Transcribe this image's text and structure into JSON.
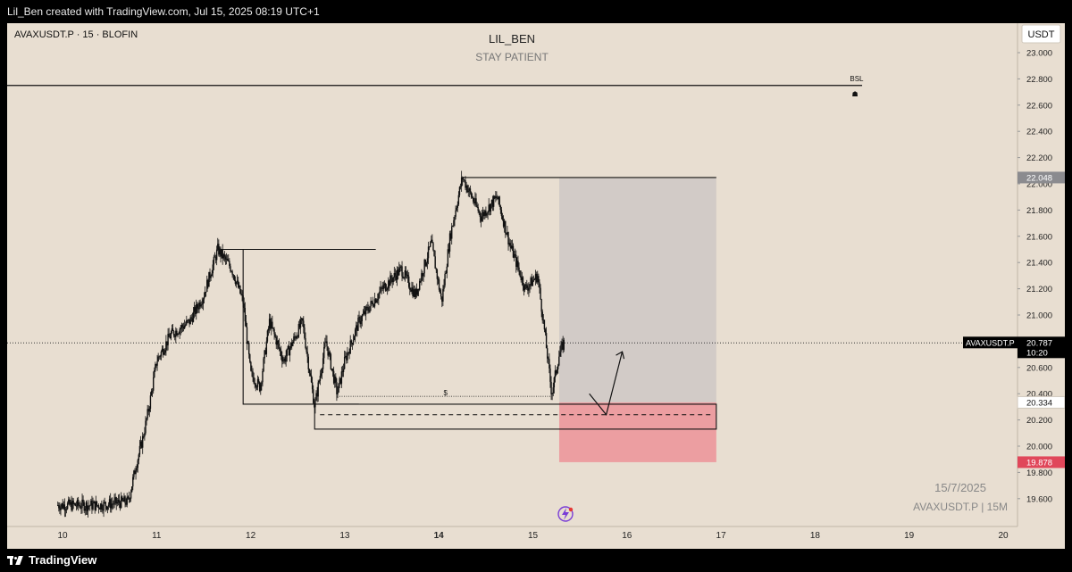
{
  "header": {
    "credit": "Lil_Ben created with TradingView.com, Jul 15, 2025 08:19 UTC+1"
  },
  "chart_header": {
    "symbol_line": "AVAXUSDT.P · 15 · BLOFIN",
    "author": "LIL_BEN",
    "subtitle": "STAY PATIENT",
    "currency_button": "USDT"
  },
  "footer": {
    "brand": "TradingView"
  },
  "annotations": {
    "bsl": "BSL",
    "dollar": "$",
    "date": "15/7/2025",
    "pair_tf": "AVAXUSDT.P | 15M"
  },
  "price_tags": {
    "symbol": "AVAXUSDT.P",
    "last": "20.787",
    "countdown": "10:20",
    "target": "22.048",
    "entry": "20.334",
    "stop": "19.878"
  },
  "colors": {
    "background": "#e8ded1",
    "candles": "#111111",
    "profit_zone": "#d2cbc7",
    "loss_zone": "#ec9ea1",
    "stop_tag": "#e0475a",
    "target_tag": "#8b8b8f"
  },
  "chart_data": {
    "type": "line",
    "style": "candlestick",
    "x_axis": {
      "ticks": [
        "10",
        "11",
        "12",
        "13",
        "14",
        "15",
        "16",
        "17",
        "18",
        "19",
        "20"
      ],
      "bold_tick": "14"
    },
    "y_axis": {
      "range": [
        19.45,
        23.05
      ],
      "ticks": [
        "23.000",
        "22.800",
        "22.600",
        "22.400",
        "22.200",
        "22.000",
        "21.800",
        "21.600",
        "21.400",
        "21.200",
        "21.000",
        "20.800",
        "20.600",
        "20.400",
        "20.200",
        "20.000",
        "19.800",
        "19.600"
      ]
    },
    "price_path": [
      {
        "x": 9.95,
        "y": 19.55
      },
      {
        "x": 10.4,
        "y": 19.55
      },
      {
        "x": 10.7,
        "y": 19.58
      },
      {
        "x": 10.78,
        "y": 19.85
      },
      {
        "x": 10.85,
        "y": 20.05
      },
      {
        "x": 10.92,
        "y": 20.3
      },
      {
        "x": 11.0,
        "y": 20.65
      },
      {
        "x": 11.15,
        "y": 20.85
      },
      {
        "x": 11.35,
        "y": 20.95
      },
      {
        "x": 11.5,
        "y": 21.15
      },
      {
        "x": 11.65,
        "y": 21.5
      },
      {
        "x": 11.8,
        "y": 21.35
      },
      {
        "x": 11.92,
        "y": 21.1
      },
      {
        "x": 12.0,
        "y": 20.55
      },
      {
        "x": 12.1,
        "y": 20.45
      },
      {
        "x": 12.2,
        "y": 20.95
      },
      {
        "x": 12.35,
        "y": 20.65
      },
      {
        "x": 12.55,
        "y": 20.95
      },
      {
        "x": 12.68,
        "y": 20.3
      },
      {
        "x": 12.8,
        "y": 20.8
      },
      {
        "x": 12.92,
        "y": 20.4
      },
      {
        "x": 13.0,
        "y": 20.65
      },
      {
        "x": 13.15,
        "y": 20.95
      },
      {
        "x": 13.4,
        "y": 21.2
      },
      {
        "x": 13.6,
        "y": 21.35
      },
      {
        "x": 13.75,
        "y": 21.15
      },
      {
        "x": 13.92,
        "y": 21.55
      },
      {
        "x": 14.03,
        "y": 21.1
      },
      {
        "x": 14.12,
        "y": 21.6
      },
      {
        "x": 14.25,
        "y": 22.05
      },
      {
        "x": 14.45,
        "y": 21.75
      },
      {
        "x": 14.62,
        "y": 21.9
      },
      {
        "x": 14.75,
        "y": 21.55
      },
      {
        "x": 14.92,
        "y": 21.2
      },
      {
        "x": 15.05,
        "y": 21.3
      },
      {
        "x": 15.12,
        "y": 20.9
      },
      {
        "x": 15.2,
        "y": 20.4
      },
      {
        "x": 15.28,
        "y": 20.7
      },
      {
        "x": 15.33,
        "y": 20.787
      }
    ],
    "levels": {
      "bsl": 22.75,
      "range_high": 22.048,
      "mid_high": 21.5,
      "low_a": 20.3,
      "low_b": 20.38,
      "entry": 20.334,
      "zone_top": 20.32,
      "zone_mid": 20.24,
      "zone_bottom": 20.13,
      "stop": 19.878,
      "last": 20.787
    },
    "position": {
      "entry": 20.334,
      "target": 22.048,
      "stop": 19.878,
      "x_start": 15.28,
      "x_end": 16.95
    },
    "projection": [
      {
        "x": 15.6,
        "y": 20.4
      },
      {
        "x": 15.78,
        "y": 20.24
      },
      {
        "x": 15.95,
        "y": 20.72
      }
    ]
  }
}
